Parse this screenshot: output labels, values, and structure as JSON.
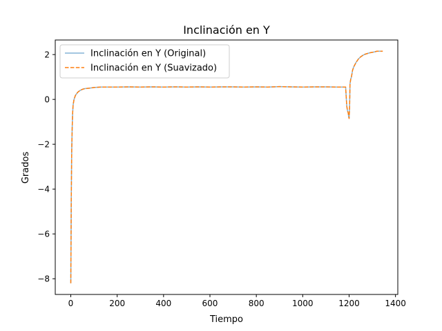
{
  "chart_data": {
    "type": "line",
    "title": "Inclinación en Y",
    "xlabel": "Tiempo",
    "ylabel": "Grados",
    "xlim": [
      -67,
      1410
    ],
    "ylim": [
      -8.7,
      2.65
    ],
    "x_ticks": [
      0,
      200,
      400,
      600,
      800,
      1000,
      1200,
      1400
    ],
    "y_ticks": [
      2,
      0,
      -2,
      -4,
      -6,
      -8
    ],
    "x_tick_labels": [
      "0",
      "200",
      "400",
      "600",
      "800",
      "1000",
      "1200",
      "1400"
    ],
    "y_tick_labels": [
      "2",
      "0",
      "−2",
      "−4",
      "−6",
      "−8"
    ],
    "grid": false,
    "legend_position": "top-left",
    "series": [
      {
        "name": "Inclinación en Y (Original)",
        "color": "#1f77b4",
        "style": "solid",
        "opacity": 0.55,
        "x": [
          0,
          1,
          2,
          4,
          6,
          8,
          10,
          14,
          20,
          30,
          40,
          50,
          60,
          80,
          100,
          130,
          160,
          200,
          250,
          300,
          350,
          400,
          450,
          500,
          550,
          600,
          650,
          700,
          750,
          800,
          850,
          900,
          950,
          1000,
          1050,
          1100,
          1150,
          1185,
          1190,
          1193,
          1196,
          1198,
          1200,
          1202,
          1204,
          1207,
          1210,
          1215,
          1220,
          1230,
          1240,
          1250,
          1260,
          1270,
          1280,
          1290,
          1300,
          1310,
          1320,
          1330,
          1345
        ],
        "y": [
          -8.2,
          -6.5,
          -4.5,
          -2.3,
          -1.3,
          -0.6,
          -0.25,
          0.0,
          0.18,
          0.32,
          0.4,
          0.45,
          0.48,
          0.5,
          0.53,
          0.55,
          0.55,
          0.55,
          0.56,
          0.55,
          0.56,
          0.55,
          0.56,
          0.55,
          0.56,
          0.55,
          0.56,
          0.56,
          0.55,
          0.56,
          0.55,
          0.57,
          0.56,
          0.55,
          0.56,
          0.56,
          0.55,
          0.55,
          -0.3,
          -0.5,
          -0.6,
          -0.75,
          -0.85,
          -0.4,
          0.7,
          0.9,
          1.0,
          1.3,
          1.45,
          1.65,
          1.8,
          1.9,
          1.97,
          2.02,
          2.05,
          2.08,
          2.1,
          2.12,
          2.15,
          2.15,
          2.15
        ]
      },
      {
        "name": "Inclinación en Y (Suavizado)",
        "color": "#ff7f0e",
        "style": "dashed",
        "opacity": 1,
        "x": [
          0,
          1,
          2,
          4,
          6,
          8,
          10,
          14,
          20,
          30,
          40,
          50,
          60,
          80,
          100,
          130,
          160,
          200,
          250,
          300,
          350,
          400,
          450,
          500,
          550,
          600,
          650,
          700,
          750,
          800,
          850,
          900,
          950,
          1000,
          1050,
          1100,
          1150,
          1185,
          1190,
          1193,
          1196,
          1198,
          1200,
          1202,
          1204,
          1207,
          1210,
          1215,
          1220,
          1230,
          1240,
          1250,
          1260,
          1270,
          1280,
          1290,
          1300,
          1310,
          1320,
          1330,
          1345
        ],
        "y": [
          -8.2,
          -6.5,
          -4.5,
          -2.3,
          -1.3,
          -0.6,
          -0.25,
          0.0,
          0.18,
          0.32,
          0.4,
          0.45,
          0.48,
          0.5,
          0.53,
          0.55,
          0.55,
          0.55,
          0.56,
          0.55,
          0.56,
          0.55,
          0.56,
          0.55,
          0.56,
          0.55,
          0.56,
          0.56,
          0.55,
          0.56,
          0.55,
          0.57,
          0.56,
          0.55,
          0.56,
          0.56,
          0.55,
          0.55,
          -0.3,
          -0.5,
          -0.6,
          -0.75,
          -0.85,
          -0.4,
          0.7,
          0.9,
          1.0,
          1.3,
          1.45,
          1.65,
          1.8,
          1.9,
          1.97,
          2.02,
          2.05,
          2.08,
          2.1,
          2.12,
          2.15,
          2.15,
          2.15
        ]
      }
    ]
  }
}
